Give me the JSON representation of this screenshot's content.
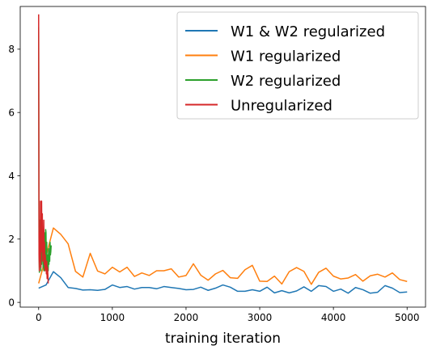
{
  "chart_data": {
    "type": "line",
    "xlabel": "training iteration",
    "ylabel": "",
    "xlim": [
      -250,
      5250
    ],
    "ylim": [
      -0.15,
      9.35
    ],
    "xticks": [
      0,
      1000,
      2000,
      3000,
      4000,
      5000
    ],
    "yticks": [
      0,
      2,
      4,
      6,
      8
    ],
    "legend_position": "top-right",
    "grid": false,
    "series": [
      {
        "name": "W1 & W2 regularized",
        "color": "#1f77b4",
        "x": [
          0,
          100,
          200,
          300,
          400,
          500,
          600,
          700,
          800,
          900,
          1000,
          1100,
          1200,
          1300,
          1400,
          1500,
          1600,
          1700,
          1800,
          1900,
          2000,
          2100,
          2200,
          2300,
          2400,
          2500,
          2600,
          2700,
          2800,
          2900,
          3000,
          3100,
          3200,
          3300,
          3400,
          3500,
          3600,
          3700,
          3800,
          3900,
          4000,
          4100,
          4200,
          4300,
          4400,
          4500,
          4600,
          4700,
          4800,
          4900,
          5000
        ],
        "y": [
          0.45,
          0.55,
          0.97,
          0.78,
          0.47,
          0.44,
          0.39,
          0.4,
          0.38,
          0.41,
          0.55,
          0.47,
          0.5,
          0.42,
          0.47,
          0.47,
          0.43,
          0.5,
          0.47,
          0.44,
          0.4,
          0.41,
          0.48,
          0.38,
          0.45,
          0.55,
          0.48,
          0.35,
          0.35,
          0.4,
          0.35,
          0.48,
          0.3,
          0.37,
          0.3,
          0.36,
          0.49,
          0.35,
          0.53,
          0.5,
          0.35,
          0.42,
          0.29,
          0.47,
          0.4,
          0.29,
          0.32,
          0.53,
          0.45,
          0.31,
          0.33
        ]
      },
      {
        "name": "W1 regularized",
        "color": "#ff7f0e",
        "x": [
          0,
          100,
          200,
          300,
          400,
          500,
          600,
          700,
          800,
          900,
          1000,
          1100,
          1200,
          1300,
          1400,
          1500,
          1600,
          1700,
          1800,
          1900,
          2000,
          2100,
          2200,
          2300,
          2400,
          2500,
          2600,
          2700,
          2800,
          2900,
          3000,
          3100,
          3200,
          3300,
          3400,
          3500,
          3600,
          3700,
          3800,
          3900,
          4000,
          4100,
          4200,
          4300,
          4400,
          4500,
          4600,
          4700,
          4800,
          4900,
          5000
        ],
        "y": [
          0.6,
          1.45,
          2.35,
          2.15,
          1.85,
          0.98,
          0.8,
          1.55,
          0.99,
          0.9,
          1.11,
          0.96,
          1.11,
          0.82,
          0.93,
          0.85,
          1.0,
          1.0,
          1.06,
          0.8,
          0.85,
          1.22,
          0.86,
          0.7,
          0.9,
          1.01,
          0.78,
          0.76,
          1.03,
          1.17,
          0.67,
          0.66,
          0.83,
          0.58,
          0.97,
          1.1,
          0.98,
          0.57,
          0.95,
          1.08,
          0.83,
          0.74,
          0.77,
          0.88,
          0.67,
          0.84,
          0.89,
          0.8,
          0.93,
          0.72,
          0.66
        ]
      },
      {
        "name": "W2 regularized",
        "color": "#2ca02c",
        "x": [
          0,
          5,
          10,
          15,
          20,
          25,
          30,
          35,
          40,
          45,
          50,
          55,
          60,
          65,
          70,
          75,
          80,
          85,
          90,
          95,
          100,
          105,
          110,
          115,
          120,
          125,
          130,
          135,
          140,
          145,
          150,
          155,
          160,
          165,
          170
        ],
        "y": [
          8.7,
          1.9,
          0.95,
          2.6,
          1.3,
          2.05,
          1.0,
          2.3,
          1.2,
          1.7,
          1.5,
          2.0,
          1.1,
          1.8,
          1.0,
          1.3,
          2.2,
          1.0,
          1.6,
          2.3,
          2.2,
          1.0,
          1.9,
          0.8,
          1.3,
          1.5,
          1.0,
          1.7,
          1.2,
          1.6,
          1.3,
          1.9,
          1.5,
          1.6,
          1.8
        ]
      },
      {
        "name": "Unregularized",
        "color": "#d62728",
        "x": [
          0,
          5,
          10,
          15,
          20,
          25,
          30,
          35,
          40,
          45,
          50,
          55,
          60,
          65,
          70,
          75,
          80,
          85,
          90,
          95,
          100,
          105,
          110,
          115,
          120,
          125,
          130
        ],
        "y": [
          9.1,
          1.5,
          1.0,
          2.2,
          1.3,
          3.2,
          1.1,
          2.5,
          3.2,
          1.6,
          2.8,
          1.3,
          2.0,
          1.6,
          2.6,
          1.2,
          1.9,
          1.0,
          1.5,
          1.3,
          1.2,
          0.9,
          1.3,
          0.75,
          1.1,
          0.9,
          0.6
        ]
      }
    ]
  }
}
